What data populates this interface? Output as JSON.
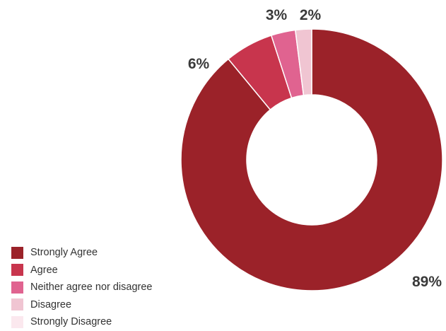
{
  "chart_data": {
    "type": "pie",
    "variant": "donut",
    "title": "",
    "categories": [
      "Strongly Agree",
      "Agree",
      "Neither agree nor disagree",
      "Disagree",
      "Strongly Disagree"
    ],
    "values": [
      89,
      6,
      3,
      2,
      0
    ],
    "slice_labels": [
      "89%",
      "6%",
      "3%",
      "2%",
      ""
    ],
    "colors": [
      "#9b2229",
      "#c8354d",
      "#e06390",
      "#f0c5d2",
      "#fbe8ee"
    ],
    "legend_position": "bottom-left"
  }
}
